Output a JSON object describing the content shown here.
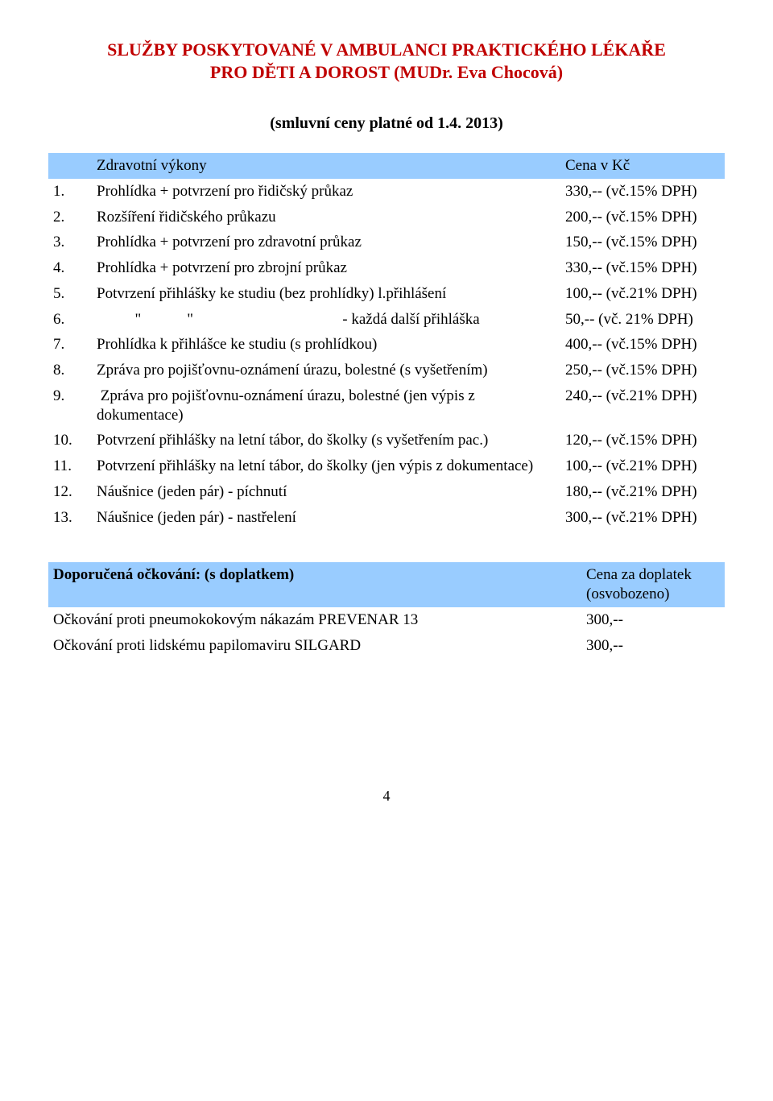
{
  "header": {
    "title_line1": "SLUŽBY POSKYTOVANÉ V AMBULANCI PRAKTICKÉHO LÉKAŘE",
    "title_line2": "PRO DĚTI A DOROST (MUDr. Eva Chocová)",
    "subtitle": "(smluvní ceny platné od 1.4. 2013)"
  },
  "table1": {
    "header_service": "Zdravotní výkony",
    "header_price": "Cena v Kč",
    "rows": [
      {
        "num": "1.",
        "desc": "Prohlídka + potvrzení pro řidičský průkaz",
        "price": "330,-- (vč.15% DPH)"
      },
      {
        "num": "2.",
        "desc": "Rozšíření řidičského průkazu",
        "price": "200,-- (vč.15% DPH)"
      },
      {
        "num": "3.",
        "desc": "Prohlídka + potvrzení pro zdravotní průkaz",
        "price": "150,-- (vč.15% DPH)"
      },
      {
        "num": "4.",
        "desc": "Prohlídka + potvrzení pro zbrojní průkaz",
        "price": "330,-- (vč.15% DPH)"
      },
      {
        "num": "5.",
        "desc": "Potvrzení přihlášky ke studiu (bez prohlídky) l.přihlášení",
        "price": "100,-- (vč.21% DPH)"
      },
      {
        "num": "6.",
        "desc": "          \"            \"                                       - každá další přihláška",
        "price": "50,-- (vč. 21% DPH)"
      },
      {
        "num": "7.",
        "desc": "Prohlídka k přihlášce ke studiu (s prohlídkou)",
        "price": "400,-- (vč.15% DPH)"
      },
      {
        "num": "8.",
        "desc": "Zpráva pro pojišťovnu-oznámení úrazu, bolestné (s vyšetřením)",
        "price": "250,-- (vč.15% DPH)"
      },
      {
        "num": "9.",
        "desc": " Zpráva pro pojišťovnu-oznámení úrazu, bolestné (jen výpis z dokumentace)",
        "price": "240,-- (vč.21% DPH)"
      },
      {
        "num": "10.",
        "desc": "Potvrzení přihlášky na letní tábor, do školky (s vyšetřením pac.)",
        "price": "120,-- (vč.15% DPH)"
      },
      {
        "num": "11.",
        "desc": "Potvrzení přihlášky na letní tábor, do školky (jen výpis z dokumentace)",
        "price": "100,-- (vč.21% DPH)"
      },
      {
        "num": "12.",
        "desc": "Náušnice (jeden pár) - píchnutí",
        "price": "180,-- (vč.21% DPH)"
      },
      {
        "num": "13.",
        "desc": "Náušnice (jeden pár) - nastřelení",
        "price": "300,-- (vč.21% DPH)"
      }
    ]
  },
  "table2": {
    "header_left": "Doporučená  očkování: (s doplatkem)",
    "header_right": "Cena za doplatek (osvobozeno)",
    "rows": [
      {
        "desc": "Očkování proti pneumokokovým nákazám PREVENAR 13",
        "price": "300,--"
      },
      {
        "desc": "Očkování proti lidskému papilomaviru SILGARD",
        "price": "300,--"
      }
    ]
  },
  "page_number": "4"
}
